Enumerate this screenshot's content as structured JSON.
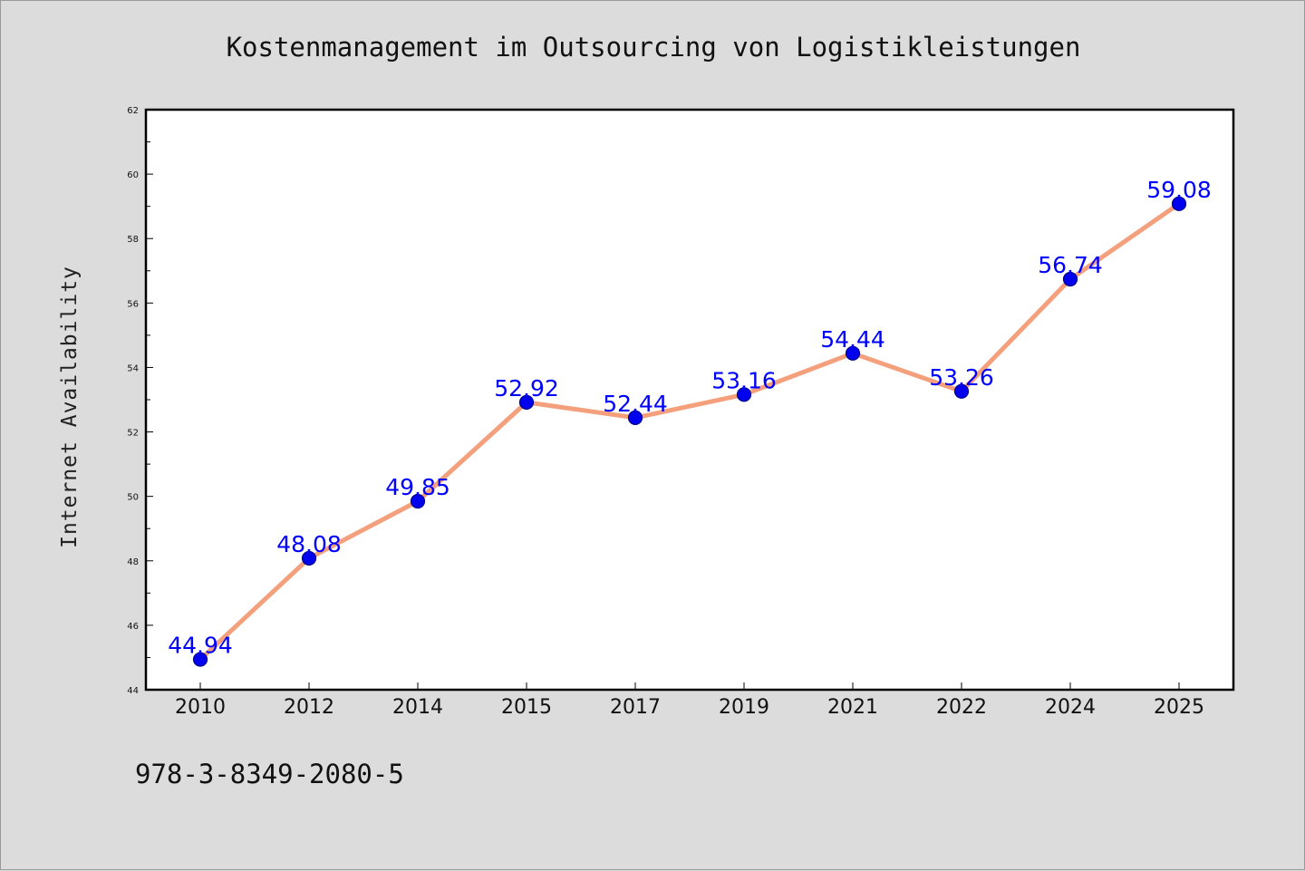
{
  "chart_data": {
    "type": "line",
    "title": "Kostenmanagement im Outsourcing von Logistikleistungen",
    "ylabel": "Internet Availability",
    "xlabel": "",
    "footer_text": "978-3-8349-2080-5",
    "categories": [
      "2010",
      "2012",
      "2014",
      "2015",
      "2017",
      "2019",
      "2021",
      "2022",
      "2024",
      "2025"
    ],
    "series": [
      {
        "values": [
          44.94,
          48.08,
          49.85,
          52.92,
          52.44,
          53.16,
          54.44,
          53.26,
          56.74,
          59.08
        ],
        "labels": [
          "44.94",
          "48.08",
          "49.85",
          "52.92",
          "52.44",
          "53.16",
          "54.44",
          "53.26",
          "56.74",
          "59.08"
        ]
      }
    ],
    "ylim": [
      44,
      62
    ],
    "y_ticks": [
      44,
      46,
      48,
      50,
      52,
      54,
      56,
      58,
      60,
      62
    ],
    "y_tick_labels": [
      "44",
      "46",
      "48",
      "50",
      "52",
      "54",
      "56",
      "58",
      "60",
      "62"
    ],
    "grid": false,
    "legend": "none",
    "colors": {
      "line": "#f4a07c",
      "marker": "#0000ee",
      "marker_edge": "#00008b",
      "data_label": "#0000ff",
      "plot_background": "#ffffff",
      "page_background": "#dcdcdc"
    }
  }
}
